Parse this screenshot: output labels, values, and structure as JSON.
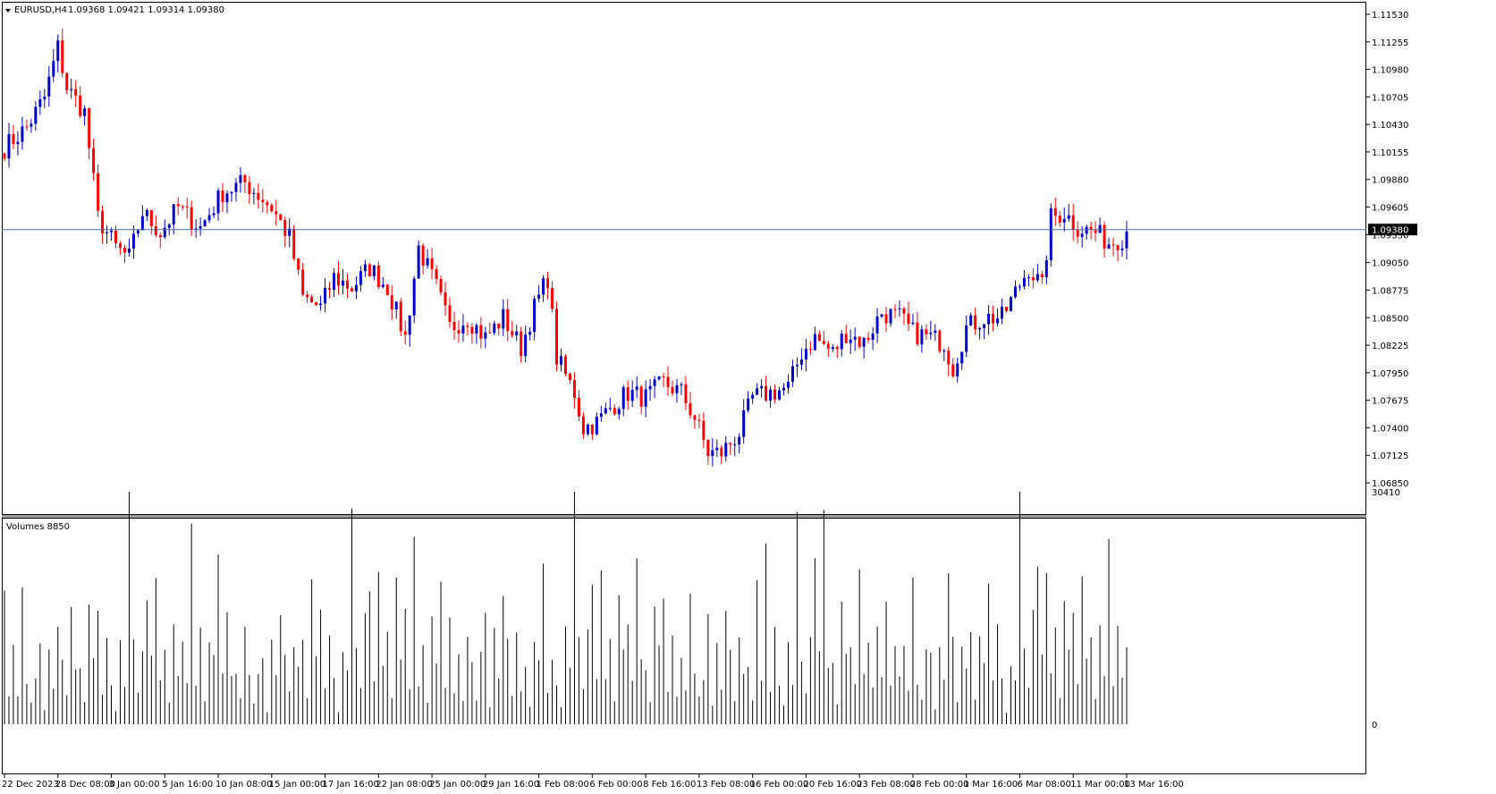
{
  "header": {
    "symbol_label": "EURUSD,H4",
    "ohlc_label": "1.09368 1.09421 1.09314 1.09380",
    "volumes_label": "Volumes 8850"
  },
  "colors": {
    "bull": "#0000cc",
    "bear": "#ff0000",
    "grid": "#000000",
    "price_line": "#4a6fa5",
    "volume": "#000000"
  },
  "icons": {
    "collapse": "triangle-down-icon"
  },
  "chart_data": [
    {
      "type": "candlestick",
      "title": "EURUSD,H4",
      "ylim": [
        1.0685,
        1.1153
      ],
      "current_price": 1.0938,
      "current_price_label": "1.09380",
      "y_ticks": [
        "1.11530",
        "1.11255",
        "1.10980",
        "1.10705",
        "1.10430",
        "1.10155",
        "1.09880",
        "1.09605",
        "1.09330",
        "1.09050",
        "1.08775",
        "1.08500",
        "1.08225",
        "1.07950",
        "1.07675",
        "1.07400",
        "1.07125",
        "1.06850"
      ],
      "x_ticks": [
        "22 Dec 2023",
        "28 Dec 08:00",
        "3 Jan 00:00",
        "5 Jan 16:00",
        "10 Jan 08:00",
        "15 Jan 00:00",
        "17 Jan 16:00",
        "22 Jan 08:00",
        "25 Jan 00:00",
        "29 Jan 16:00",
        "1 Feb 08:00",
        "6 Feb 00:00",
        "8 Feb 16:00",
        "13 Feb 08:00",
        "16 Feb 00:00",
        "20 Feb 16:00",
        "23 Feb 08:00",
        "28 Feb 00:00",
        "1 Mar 16:00",
        "6 Mar 08:00",
        "11 Mar 00:00",
        "13 Mar 16:00"
      ],
      "x_tick_bars": [
        0,
        12,
        24,
        36,
        48,
        60,
        72,
        84,
        96,
        108,
        120,
        132,
        144,
        156,
        168,
        180,
        192,
        204,
        216,
        228,
        240,
        252
      ],
      "close_trajectory": [
        [
          0,
          1.102
        ],
        [
          5,
          1.104
        ],
        [
          9,
          1.107
        ],
        [
          12,
          1.112
        ],
        [
          14,
          1.108
        ],
        [
          18,
          1.1055
        ],
        [
          21,
          1.095
        ],
        [
          25,
          1.092
        ],
        [
          28,
          1.091
        ],
        [
          31,
          1.0955
        ],
        [
          35,
          1.0935
        ],
        [
          39,
          1.096
        ],
        [
          44,
          1.094
        ],
        [
          49,
          1.0975
        ],
        [
          54,
          1.0985
        ],
        [
          60,
          1.096
        ],
        [
          64,
          1.093
        ],
        [
          67,
          1.087
        ],
        [
          71,
          1.086
        ],
        [
          74,
          1.089
        ],
        [
          78,
          1.088
        ],
        [
          82,
          1.09
        ],
        [
          86,
          1.088
        ],
        [
          90,
          1.083
        ],
        [
          93,
          1.092
        ],
        [
          97,
          1.088
        ],
        [
          100,
          1.084
        ],
        [
          104,
          1.085
        ],
        [
          108,
          1.083
        ],
        [
          112,
          1.085
        ],
        [
          116,
          1.082
        ],
        [
          119,
          1.086
        ],
        [
          122,
          1.089
        ],
        [
          124,
          1.081
        ],
        [
          128,
          1.0775
        ],
        [
          130,
          1.074
        ],
        [
          133,
          1.0745
        ],
        [
          136,
          1.076
        ],
        [
          140,
          1.0775
        ],
        [
          144,
          1.077
        ],
        [
          148,
          1.0785
        ],
        [
          152,
          1.0775
        ],
        [
          155,
          1.075
        ],
        [
          158,
          1.0715
        ],
        [
          161,
          1.0715
        ],
        [
          165,
          1.0735
        ],
        [
          168,
          1.077
        ],
        [
          172,
          1.0775
        ],
        [
          176,
          1.078
        ],
        [
          179,
          1.0815
        ],
        [
          182,
          1.083
        ],
        [
          186,
          1.0815
        ],
        [
          189,
          1.0835
        ],
        [
          193,
          1.0825
        ],
        [
          197,
          1.0855
        ],
        [
          201,
          1.085
        ],
        [
          204,
          1.0835
        ],
        [
          208,
          1.083
        ],
        [
          211,
          1.0825
        ],
        [
          213,
          1.08
        ],
        [
          216,
          1.084
        ],
        [
          220,
          1.085
        ],
        [
          224,
          1.085
        ],
        [
          227,
          1.0875
        ],
        [
          230,
          1.09
        ],
        [
          233,
          1.088
        ],
        [
          235,
          1.095
        ],
        [
          238,
          1.0955
        ],
        [
          241,
          1.094
        ],
        [
          245,
          1.0935
        ],
        [
          248,
          1.0925
        ],
        [
          251,
          1.093
        ],
        [
          252,
          1.0938
        ]
      ]
    },
    {
      "type": "bar",
      "title": "Volumes 8850",
      "ylim": [
        0,
        30410
      ],
      "y_ticks": [
        "30410",
        "0"
      ],
      "volume_samples": [
        14000,
        5000,
        9000,
        4000,
        16000,
        7000,
        3000,
        8000,
        12000,
        2000,
        11000,
        5000,
        18000,
        9000,
        4000,
        13000,
        6000,
        10000,
        3000,
        15000,
        8000,
        19000,
        5000,
        12000,
        7000,
        2000,
        10000,
        6000,
        26000,
        9000,
        4000,
        12000,
        17000,
        8000,
        22000,
        6000,
        11000,
        3000,
        16000,
        9000,
        13000,
        5000,
        24000,
        7000,
        10000,
        4000,
        14000,
        8000,
        20000,
        6000
      ]
    }
  ]
}
